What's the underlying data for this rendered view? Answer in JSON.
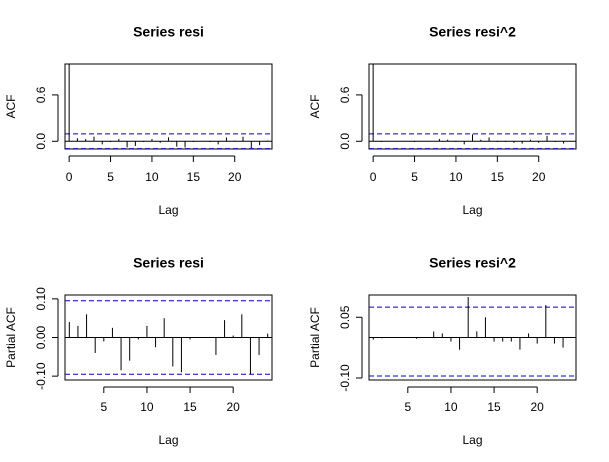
{
  "chart_data": [
    {
      "type": "bar",
      "title": "Series  resi",
      "xlabel": "Lag",
      "ylabel": "ACF",
      "xlim": [
        -0.5,
        24.5
      ],
      "ylim": [
        -0.1,
        1.0
      ],
      "xticks": [
        0,
        5,
        10,
        15,
        20
      ],
      "yticks": [
        0.0,
        0.6
      ],
      "ytick_labels": [
        "0.0",
        "0.6"
      ],
      "conf_band": 0.095,
      "lags": [
        0,
        1,
        2,
        3,
        4,
        5,
        6,
        7,
        8,
        9,
        10,
        11,
        12,
        13,
        14,
        15,
        16,
        17,
        18,
        19,
        20,
        21,
        22,
        23,
        24
      ],
      "values": [
        1.0,
        0.04,
        0.03,
        0.06,
        -0.04,
        -0.01,
        0.03,
        -0.08,
        -0.06,
        -0.01,
        0.03,
        -0.02,
        0.05,
        -0.07,
        -0.08,
        -0.01,
        0.0,
        -0.01,
        -0.04,
        0.05,
        0.01,
        0.06,
        -0.09,
        -0.05,
        0.01
      ],
      "grid": false
    },
    {
      "type": "bar",
      "title": "Series  resi^2",
      "xlabel": "Lag",
      "ylabel": "ACF",
      "xlim": [
        -0.5,
        24.5
      ],
      "ylim": [
        -0.1,
        1.0
      ],
      "xticks": [
        0,
        5,
        10,
        15,
        20
      ],
      "yticks": [
        0.0,
        0.6
      ],
      "ytick_labels": [
        "0.0",
        "0.6"
      ],
      "conf_band": 0.095,
      "lags": [
        0,
        1,
        2,
        3,
        4,
        5,
        6,
        7,
        8,
        9,
        10,
        11,
        12,
        13,
        14,
        15,
        16,
        17,
        18,
        19,
        20,
        21,
        22,
        23,
        24
      ],
      "values": [
        1.0,
        -0.01,
        0.0,
        0.0,
        0.0,
        -0.01,
        0.0,
        0.0,
        0.03,
        0.02,
        -0.01,
        -0.04,
        0.09,
        0.02,
        0.05,
        -0.01,
        -0.01,
        -0.02,
        -0.03,
        0.02,
        -0.02,
        0.07,
        -0.01,
        -0.03,
        0.0
      ],
      "grid": false
    },
    {
      "type": "bar",
      "title": "Series  resi",
      "xlabel": "Lag",
      "ylabel": "Partial ACF",
      "xlim": [
        0.5,
        24.5
      ],
      "ylim": [
        -0.11,
        0.11
      ],
      "xticks": [
        5,
        10,
        15,
        20
      ],
      "yticks": [
        -0.1,
        0.0,
        0.1
      ],
      "ytick_labels": [
        "-0.10",
        "0.00",
        "0.10"
      ],
      "conf_band": 0.095,
      "lags": [
        1,
        2,
        3,
        4,
        5,
        6,
        7,
        8,
        9,
        10,
        11,
        12,
        13,
        14,
        15,
        16,
        17,
        18,
        19,
        20,
        21,
        22,
        23,
        24
      ],
      "values": [
        0.04,
        0.03,
        0.06,
        -0.04,
        -0.01,
        0.025,
        -0.085,
        -0.06,
        -0.005,
        0.03,
        -0.025,
        0.05,
        -0.075,
        -0.09,
        -0.005,
        0.0,
        0.0,
        -0.045,
        0.045,
        0.005,
        0.06,
        -0.095,
        -0.045,
        0.01
      ],
      "grid": false
    },
    {
      "type": "bar",
      "title": "Series  resi^2",
      "xlabel": "Lag",
      "ylabel": "Partial ACF",
      "xlim": [
        0.5,
        24.5
      ],
      "ylim": [
        -0.105,
        0.105
      ],
      "xticks": [
        5,
        10,
        15,
        20
      ],
      "yticks": [
        -0.1,
        0.05
      ],
      "ytick_labels": [
        "-0.10",
        "0.05"
      ],
      "conf_band": 0.095,
      "hband_levels": [
        -0.095,
        0.075
      ],
      "lags": [
        1,
        2,
        3,
        4,
        5,
        6,
        7,
        8,
        9,
        10,
        11,
        12,
        13,
        14,
        15,
        16,
        17,
        18,
        19,
        20,
        21,
        22,
        23,
        24
      ],
      "values": [
        -0.005,
        -0.002,
        0.0,
        0.0,
        0.0,
        -0.003,
        0.0,
        0.015,
        0.01,
        -0.01,
        -0.03,
        0.1,
        0.015,
        0.05,
        -0.01,
        -0.01,
        -0.01,
        -0.03,
        0.01,
        -0.015,
        0.08,
        -0.015,
        -0.025,
        0.0
      ],
      "grid": false
    }
  ]
}
